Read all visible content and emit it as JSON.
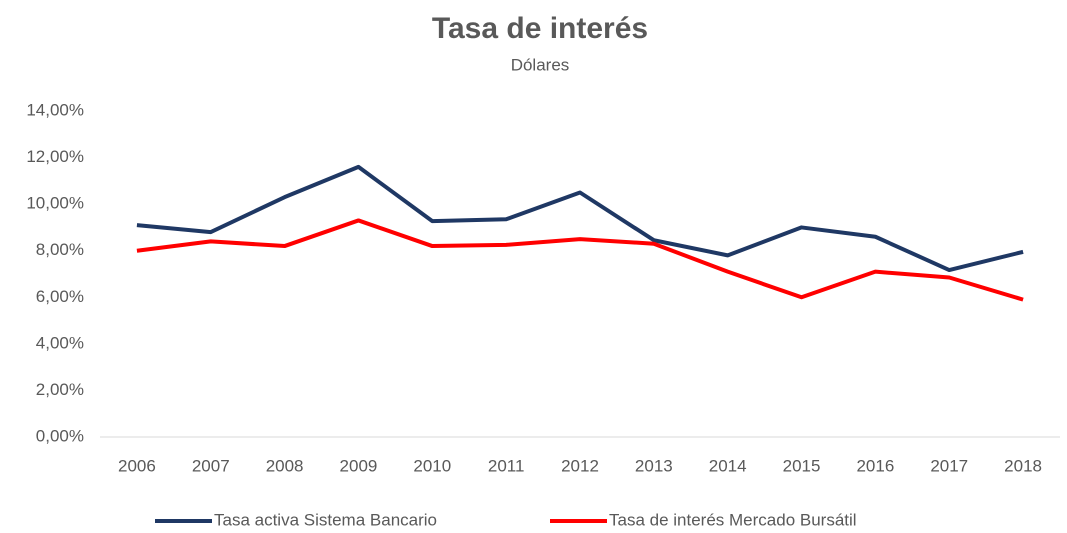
{
  "chart_data": {
    "type": "line",
    "title": "Tasa de interés",
    "subtitle": "Dólares",
    "categories": [
      "2006",
      "2007",
      "2008",
      "2009",
      "2010",
      "2011",
      "2012",
      "2013",
      "2014",
      "2015",
      "2016",
      "2017",
      "2018"
    ],
    "series": [
      {
        "name": "Tasa activa Sistema Bancario",
        "color": "#1f3864",
        "values": [
          9.1,
          8.8,
          10.3,
          11.6,
          9.27,
          9.35,
          10.5,
          8.45,
          7.8,
          9.0,
          8.6,
          7.17,
          7.95
        ]
      },
      {
        "name": "Tasa de interés Mercado Bursátil",
        "color": "#ff0000",
        "values": [
          8.0,
          8.4,
          8.2,
          9.3,
          8.2,
          8.25,
          8.5,
          8.3,
          7.1,
          6.0,
          7.1,
          6.85,
          5.9
        ]
      }
    ],
    "ylim": [
      0,
      14
    ],
    "yticks": [
      {
        "value": 0,
        "label": "0,00%"
      },
      {
        "value": 2,
        "label": "2,00%"
      },
      {
        "value": 4,
        "label": "4,00%"
      },
      {
        "value": 6,
        "label": "6,00%"
      },
      {
        "value": 8,
        "label": "8,00%"
      },
      {
        "value": 10,
        "label": "10,00%"
      },
      {
        "value": 12,
        "label": "12,00%"
      },
      {
        "value": 14,
        "label": "14,00%"
      }
    ],
    "grid": false,
    "legend": "bottom"
  }
}
